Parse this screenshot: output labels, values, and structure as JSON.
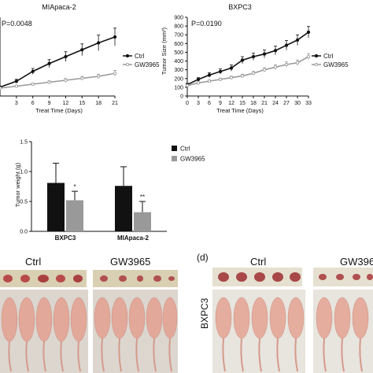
{
  "chart_data": [
    {
      "type": "line",
      "title": "MIApaca-2",
      "annotation": "P=0.0048",
      "xlabel": "Treat Time (Days)",
      "ylabel": "",
      "x": [
        0,
        3,
        6,
        9,
        12,
        15,
        18,
        21
      ],
      "xticks": [
        "3",
        "6",
        "9",
        "12",
        "15",
        "18",
        "21"
      ],
      "ylim": [
        0,
        800
      ],
      "series": [
        {
          "name": "Ctrl",
          "color": "#111111",
          "marker": "filled-circle",
          "values": [
            90,
            150,
            250,
            330,
            400,
            470,
            540,
            600
          ],
          "err": [
            10,
            20,
            30,
            40,
            50,
            60,
            80,
            90
          ]
        },
        {
          "name": "GW3965",
          "color": "#999999",
          "marker": "open-circle",
          "values": [
            80,
            100,
            120,
            140,
            160,
            180,
            200,
            230
          ],
          "err": [
            8,
            10,
            12,
            15,
            18,
            20,
            22,
            30
          ]
        }
      ],
      "legend": "right"
    },
    {
      "type": "line",
      "title": "BXPC3",
      "annotation": "P=0.0190",
      "xlabel": "Treat Time (Days)",
      "ylabel": "Tumor Size (mm³)",
      "x": [
        0,
        3,
        6,
        9,
        12,
        15,
        18,
        21,
        24,
        27,
        30,
        33
      ],
      "xticks": [
        "0",
        "3",
        "6",
        "9",
        "12",
        "15",
        "18",
        "21",
        "24",
        "27",
        "30",
        "33"
      ],
      "yticks": [
        "0",
        "100",
        "200",
        "300",
        "400",
        "500",
        "600",
        "700",
        "800",
        "900"
      ],
      "ylim": [
        0,
        900
      ],
      "series": [
        {
          "name": "Ctrl",
          "color": "#111111",
          "marker": "filled-circle",
          "values": [
            130,
            190,
            240,
            280,
            320,
            410,
            450,
            480,
            520,
            580,
            640,
            730
          ],
          "err": [
            15,
            20,
            25,
            30,
            35,
            40,
            40,
            45,
            50,
            55,
            60,
            65
          ]
        },
        {
          "name": "GW3965",
          "color": "#999999",
          "marker": "open-circle",
          "values": [
            120,
            150,
            170,
            190,
            210,
            230,
            260,
            300,
            330,
            360,
            380,
            450
          ],
          "err": [
            10,
            12,
            14,
            15,
            18,
            20,
            22,
            25,
            28,
            30,
            32,
            35
          ]
        }
      ],
      "legend": "right"
    },
    {
      "type": "bar",
      "title": "",
      "xlabel": "",
      "ylabel": "Tumor weight (g)",
      "categories": [
        "BXPC3",
        "MIApaca-2"
      ],
      "yticks": [
        "0.0",
        "0.5",
        "1.0",
        "1.5"
      ],
      "ylim": [
        0,
        1.5
      ],
      "series": [
        {
          "name": "Ctrl",
          "color": "#111111",
          "values": [
            0.81,
            0.76
          ],
          "err": [
            0.33,
            0.32
          ]
        },
        {
          "name": "GW3965",
          "color": "#999999",
          "values": [
            0.52,
            0.32
          ],
          "err": [
            0.15,
            0.18
          ]
        }
      ],
      "significance": [
        {
          "category": "BXPC3",
          "label": "*"
        },
        {
          "category": "MIApaca-2",
          "label": "**"
        }
      ],
      "legend": "right"
    }
  ],
  "photos": {
    "left_ctrl_label": "Ctrl",
    "left_gw_label": "GW3965",
    "panel_d_label": "(d)",
    "right_ctrl_label": "Ctrl",
    "right_gw_label": "GW396",
    "side_label": "BXPC3"
  }
}
